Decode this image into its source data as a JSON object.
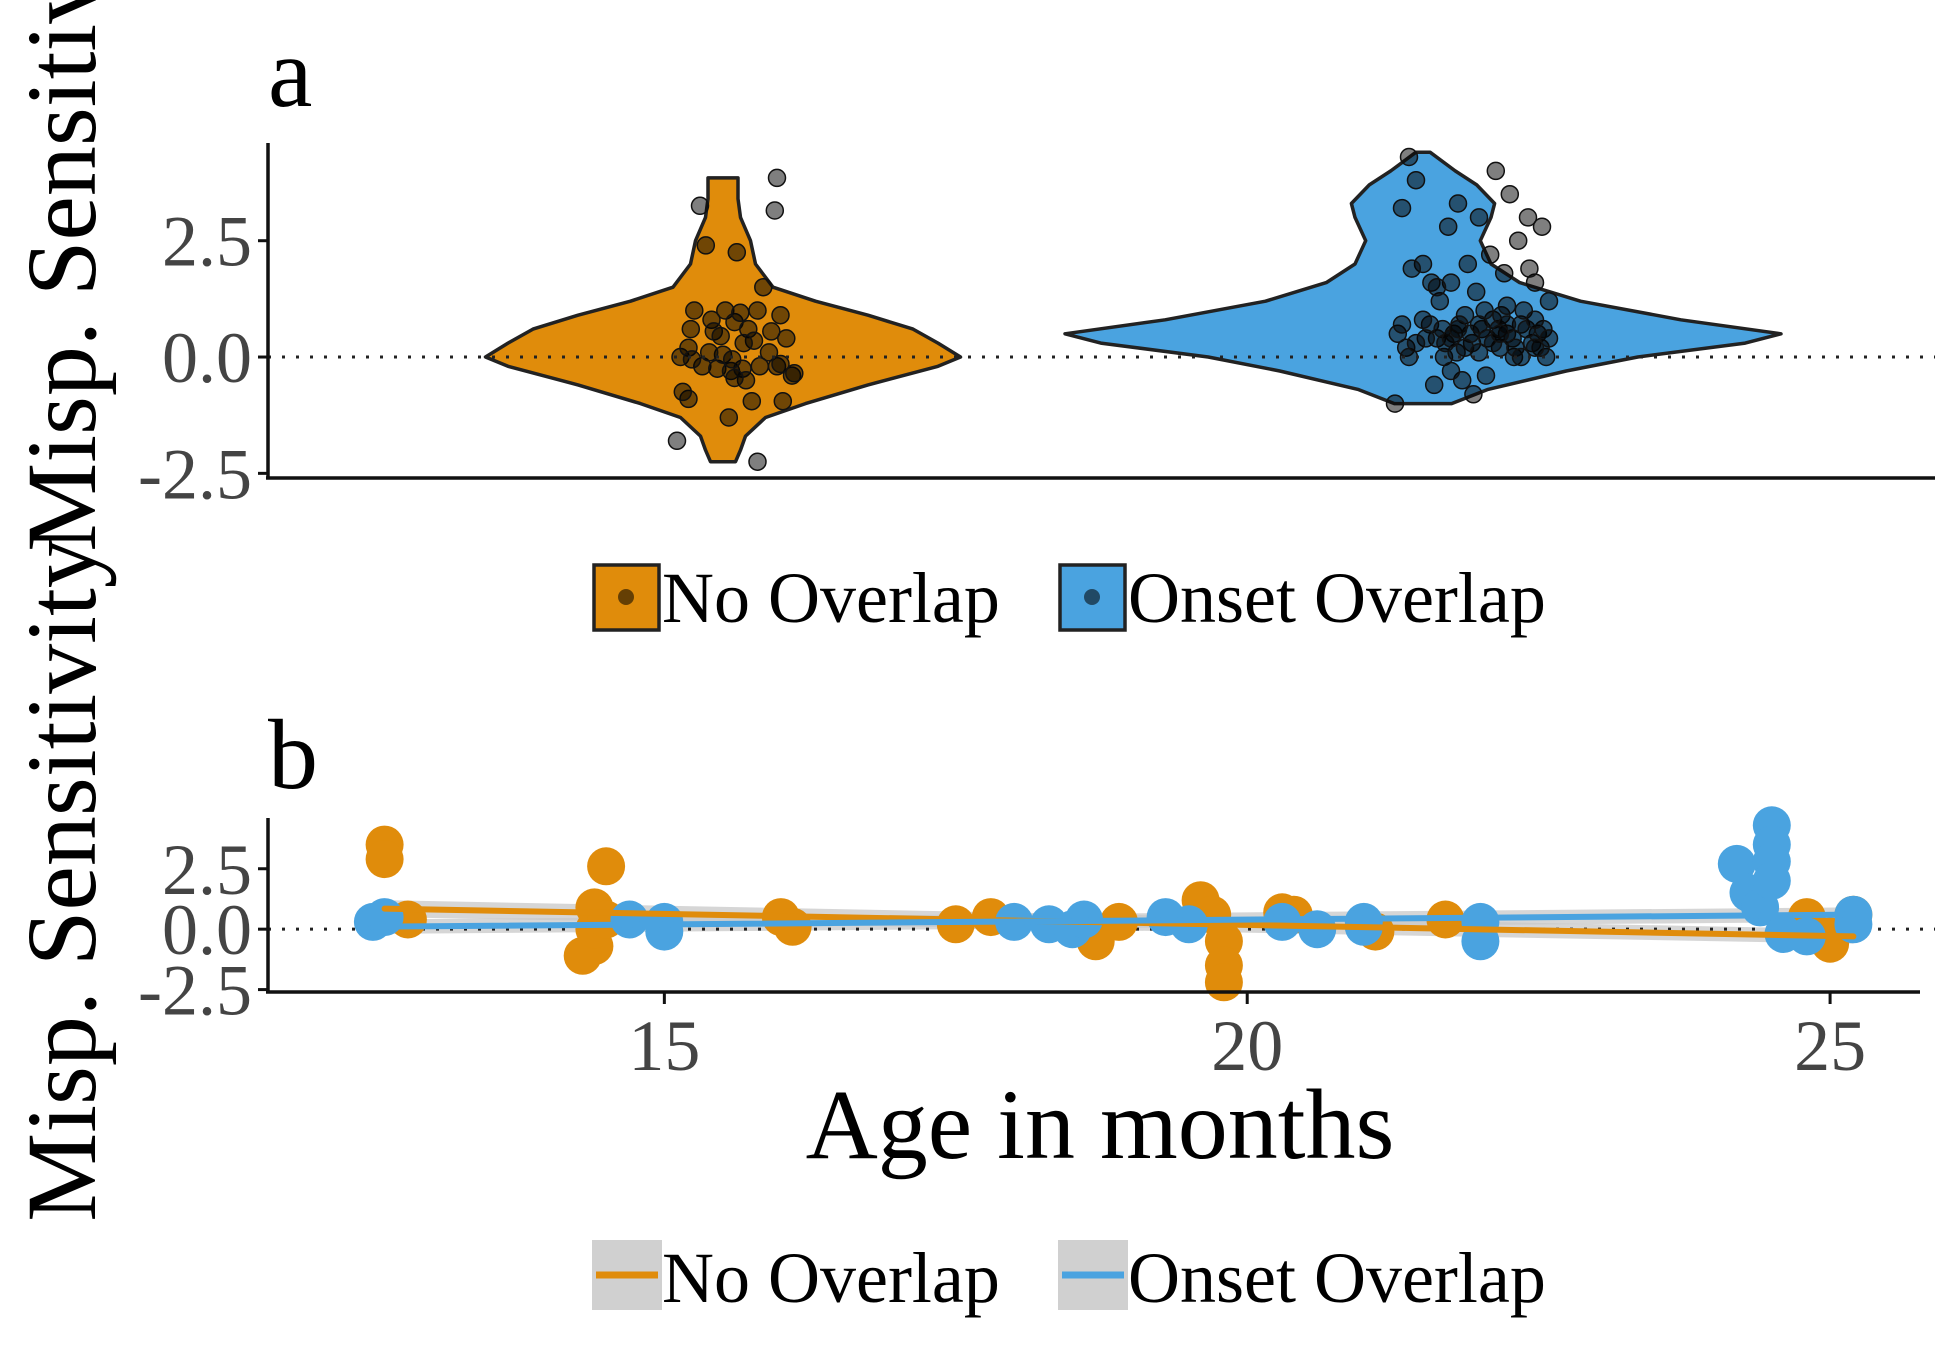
{
  "colors": {
    "no_overlap": "#E08C0B",
    "onset_overlap": "#4AA3E0",
    "outline": "#222222",
    "band": "#C8C8C8"
  },
  "chart_data": [
    {
      "type": "violin",
      "panel_label": "a",
      "ylabel": "Misp. Sensitivity",
      "xlabel": "",
      "ylim": [
        -2.6,
        4.6
      ],
      "yticks": [
        -2.5,
        0.0,
        2.5
      ],
      "ytick_labels": [
        "-2.5",
        "0.0",
        "2.5"
      ],
      "reference_line_y": 0,
      "legend": {
        "position": "bottom",
        "entries": [
          "No Overlap",
          "Onset Overlap"
        ]
      },
      "groups": [
        {
          "name": "No Overlap",
          "color": "#E08C0B",
          "range": [
            -2.25,
            3.85
          ],
          "profile": [
            [
              -2.25,
              0.05
            ],
            [
              -2.0,
              0.07
            ],
            [
              -1.7,
              0.09
            ],
            [
              -1.3,
              0.17
            ],
            [
              -1.0,
              0.33
            ],
            [
              -0.6,
              0.58
            ],
            [
              -0.2,
              0.86
            ],
            [
              0.0,
              0.95
            ],
            [
              0.3,
              0.86
            ],
            [
              0.6,
              0.76
            ],
            [
              0.9,
              0.58
            ],
            [
              1.2,
              0.37
            ],
            [
              1.5,
              0.2
            ],
            [
              2.0,
              0.13
            ],
            [
              2.5,
              0.11
            ],
            [
              3.0,
              0.07
            ],
            [
              3.4,
              0.06
            ],
            [
              3.85,
              0.06
            ]
          ],
          "points": [
            [
              -0.4,
              -1.8
            ],
            [
              -0.3,
              -0.9
            ],
            [
              -0.35,
              -0.75
            ],
            [
              -0.37,
              0.0
            ],
            [
              -0.3,
              0.2
            ],
            [
              -0.28,
              0.6
            ],
            [
              -0.25,
              1.0
            ],
            [
              -0.2,
              3.25
            ],
            [
              -0.15,
              2.4
            ],
            [
              -0.18,
              -0.2
            ],
            [
              -0.1,
              0.8
            ],
            [
              -0.05,
              -0.25
            ],
            [
              -0.08,
              0.55
            ],
            [
              0.0,
              0.05
            ],
            [
              0.02,
              1.0
            ],
            [
              0.05,
              -1.3
            ],
            [
              0.07,
              -0.3
            ],
            [
              0.1,
              0.75
            ],
            [
              0.12,
              2.25
            ],
            [
              0.15,
              0.95
            ],
            [
              0.17,
              -0.25
            ],
            [
              0.2,
              -0.5
            ],
            [
              0.22,
              0.6
            ],
            [
              0.25,
              -0.95
            ],
            [
              0.27,
              0.35
            ],
            [
              0.3,
              1.0
            ],
            [
              0.32,
              -0.2
            ],
            [
              0.35,
              1.5
            ],
            [
              0.4,
              0.1
            ],
            [
              0.42,
              0.55
            ],
            [
              0.45,
              3.15
            ],
            [
              0.47,
              -0.2
            ],
            [
              0.5,
              0.9
            ],
            [
              0.52,
              -0.95
            ],
            [
              0.55,
              0.4
            ],
            [
              0.6,
              -0.4
            ],
            [
              0.62,
              -0.35
            ],
            [
              -0.02,
              0.45
            ],
            [
              -0.12,
              0.1
            ],
            [
              0.08,
              -0.05
            ],
            [
              0.5,
              -0.15
            ],
            [
              0.47,
              3.85
            ],
            [
              0.3,
              -2.25
            ],
            [
              0.1,
              -0.45
            ],
            [
              -0.27,
              -0.05
            ],
            [
              0.18,
              0.3
            ]
          ]
        },
        {
          "name": "Onset Overlap",
          "color": "#4AA3E0",
          "range": [
            -1.0,
            4.4
          ],
          "profile": [
            [
              -1.0,
              0.08
            ],
            [
              -0.7,
              0.18
            ],
            [
              -0.3,
              0.4
            ],
            [
              0.0,
              0.6
            ],
            [
              0.3,
              0.9
            ],
            [
              0.5,
              1.0
            ],
            [
              0.8,
              0.72
            ],
            [
              1.2,
              0.44
            ],
            [
              1.6,
              0.27
            ],
            [
              2.0,
              0.19
            ],
            [
              2.5,
              0.16
            ],
            [
              3.0,
              0.19
            ],
            [
              3.3,
              0.2
            ],
            [
              3.7,
              0.15
            ],
            [
              4.0,
              0.09
            ],
            [
              4.4,
              0.02
            ]
          ],
          "points": [
            [
              -0.2,
              -1.0
            ],
            [
              -0.15,
              3.2
            ],
            [
              -0.1,
              4.3
            ],
            [
              -0.05,
              3.8
            ],
            [
              0.0,
              2.0
            ],
            [
              0.05,
              0.7
            ],
            [
              0.1,
              0.4
            ],
            [
              0.12,
              1.2
            ],
            [
              0.15,
              0.0
            ],
            [
              0.18,
              2.8
            ],
            [
              0.2,
              1.6
            ],
            [
              0.22,
              0.5
            ],
            [
              0.25,
              3.3
            ],
            [
              0.28,
              -0.5
            ],
            [
              0.3,
              0.9
            ],
            [
              0.32,
              2.0
            ],
            [
              0.35,
              0.3
            ],
            [
              0.38,
              1.4
            ],
            [
              0.4,
              3.0
            ],
            [
              0.42,
              0.6
            ],
            [
              0.45,
              -0.4
            ],
            [
              0.48,
              2.2
            ],
            [
              0.5,
              0.8
            ],
            [
              0.52,
              4.0
            ],
            [
              0.55,
              0.2
            ],
            [
              0.58,
              1.8
            ],
            [
              0.6,
              0.5
            ],
            [
              0.62,
              3.5
            ],
            [
              0.65,
              0.0
            ],
            [
              0.68,
              2.5
            ],
            [
              0.7,
              0.7
            ],
            [
              0.72,
              1.0
            ],
            [
              0.75,
              3.0
            ],
            [
              0.78,
              0.3
            ],
            [
              0.8,
              1.6
            ],
            [
              0.82,
              0.5
            ],
            [
              0.85,
              2.8
            ],
            [
              0.88,
              0.0
            ],
            [
              0.9,
              1.2
            ],
            [
              -0.18,
              0.5
            ],
            [
              -0.12,
              0.2
            ],
            [
              -0.08,
              1.9
            ],
            [
              0.02,
              0.4
            ],
            [
              0.08,
              -0.6
            ],
            [
              0.14,
              0.6
            ],
            [
              0.24,
              0.1
            ],
            [
              0.34,
              0.5
            ],
            [
              0.44,
              1.0
            ],
            [
              0.54,
              0.6
            ],
            [
              0.64,
              0.4
            ],
            [
              0.74,
              0.6
            ],
            [
              0.84,
              0.2
            ],
            [
              -0.15,
              0.7
            ],
            [
              0.06,
              1.6
            ],
            [
              0.16,
              0.3
            ],
            [
              0.26,
              0.7
            ],
            [
              0.36,
              -0.8
            ],
            [
              0.46,
              0.4
            ],
            [
              0.56,
              0.9
            ],
            [
              0.66,
              0.2
            ],
            [
              0.76,
              1.9
            ],
            [
              0.86,
              0.6
            ],
            [
              -0.1,
              0.0
            ],
            [
              0.0,
              0.8
            ],
            [
              0.1,
              1.5
            ],
            [
              0.2,
              0.4
            ],
            [
              0.3,
              0.2
            ],
            [
              0.4,
              0.7
            ],
            [
              0.5,
              0.3
            ],
            [
              0.6,
              1.1
            ],
            [
              0.7,
              0.0
            ],
            [
              0.8,
              0.8
            ],
            [
              0.9,
              0.4
            ],
            [
              -0.05,
              0.3
            ],
            [
              0.2,
              -0.3
            ],
            [
              0.4,
              0.1
            ],
            [
              0.6,
              0.7
            ],
            [
              0.8,
              0.2
            ],
            [
              0.25,
              0.6
            ],
            [
              0.55,
              0.5
            ]
          ]
        }
      ]
    },
    {
      "type": "scatter",
      "panel_label": "b",
      "ylabel": "Misp. Sensitivity",
      "xlabel": "Age in months",
      "xlim": [
        11.6,
        25.9
      ],
      "ylim": [
        -2.6,
        4.6
      ],
      "xticks": [
        15,
        20,
        25
      ],
      "xtick_labels": [
        "15",
        "20",
        "25"
      ],
      "yticks": [
        -2.5,
        0.0,
        2.5
      ],
      "ytick_labels": [
        "-2.5",
        "0.0",
        "2.5"
      ],
      "reference_line_y": 0,
      "legend": {
        "position": "bottom",
        "entries": [
          "No Overlap",
          "Onset Overlap"
        ]
      },
      "series": [
        {
          "name": "No Overlap",
          "color": "#E08C0B",
          "points": [
            [
              12.6,
              3.5
            ],
            [
              12.6,
              2.9
            ],
            [
              12.8,
              0.4
            ],
            [
              14.4,
              0.9
            ],
            [
              14.5,
              2.6
            ],
            [
              14.4,
              -0.7
            ],
            [
              14.3,
              -1.1
            ],
            [
              14.4,
              0.0
            ],
            [
              14.5,
              0.4
            ],
            [
              16.0,
              0.5
            ],
            [
              16.1,
              0.1
            ],
            [
              17.5,
              0.2
            ],
            [
              17.8,
              0.5
            ],
            [
              18.7,
              -0.5
            ],
            [
              18.9,
              0.3
            ],
            [
              19.6,
              1.2
            ],
            [
              19.7,
              0.6
            ],
            [
              19.8,
              -0.5
            ],
            [
              19.8,
              -1.5
            ],
            [
              19.8,
              -2.2
            ],
            [
              20.3,
              0.7
            ],
            [
              20.4,
              0.6
            ],
            [
              21.1,
              -0.1
            ],
            [
              21.7,
              0.4
            ],
            [
              24.8,
              0.5
            ],
            [
              25.0,
              -0.3
            ],
            [
              25.0,
              -0.6
            ],
            [
              25.2,
              0.6
            ]
          ],
          "trend": {
            "x": [
              12.6,
              25.2
            ],
            "y": [
              0.85,
              -0.3
            ],
            "band": [
              0.35,
              0.3
            ]
          }
        },
        {
          "name": "Onset Overlap",
          "color": "#4AA3E0",
          "points": [
            [
              12.5,
              0.3
            ],
            [
              12.6,
              0.5
            ],
            [
              14.7,
              0.4
            ],
            [
              15.0,
              0.3
            ],
            [
              15.0,
              -0.1
            ],
            [
              18.0,
              0.3
            ],
            [
              18.3,
              0.2
            ],
            [
              18.5,
              0.0
            ],
            [
              18.6,
              0.4
            ],
            [
              19.3,
              0.5
            ],
            [
              19.5,
              0.2
            ],
            [
              20.3,
              0.3
            ],
            [
              20.6,
              0.0
            ],
            [
              21.0,
              0.3
            ],
            [
              21.0,
              0.1
            ],
            [
              22.0,
              0.3
            ],
            [
              22.0,
              -0.5
            ],
            [
              24.2,
              2.7
            ],
            [
              24.3,
              1.5
            ],
            [
              24.4,
              0.9
            ],
            [
              24.5,
              4.3
            ],
            [
              24.5,
              3.5
            ],
            [
              24.5,
              2.8
            ],
            [
              24.5,
              2.0
            ],
            [
              24.6,
              -0.2
            ],
            [
              24.8,
              -0.3
            ],
            [
              25.2,
              0.6
            ],
            [
              25.2,
              0.2
            ]
          ],
          "trend": {
            "x": [
              12.5,
              25.2
            ],
            "y": [
              0.1,
              0.6
            ],
            "band": [
              0.3,
              0.3
            ]
          }
        }
      ]
    }
  ]
}
